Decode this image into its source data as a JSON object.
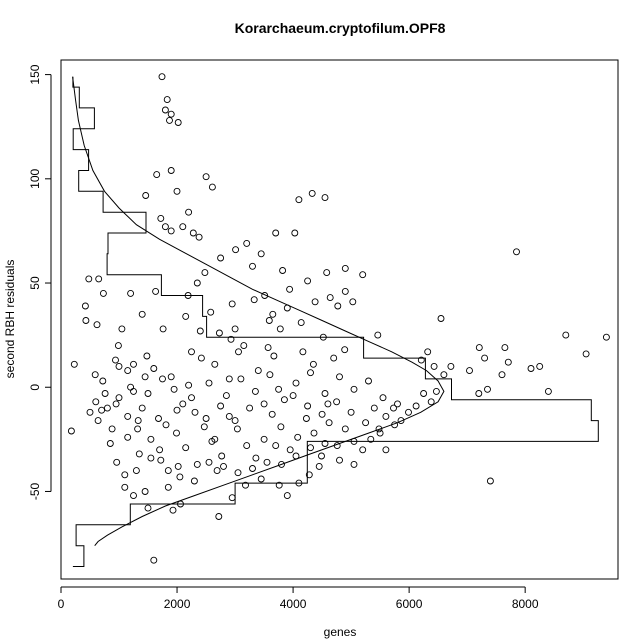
{
  "chart_data": {
    "type": "scatter",
    "title": "Korarchaeum.cryptofilum.OPF8",
    "xlabel": "genes",
    "ylabel": "second RBH residuals",
    "xlim": [
      0,
      9600
    ],
    "ylim": [
      -92,
      157
    ],
    "xticks": [
      0,
      2000,
      4000,
      6000,
      8000
    ],
    "yticks": [
      -50,
      0,
      50,
      100,
      150
    ],
    "xtick_labels": [
      "0",
      "2000",
      "4000",
      "6000",
      "8000"
    ],
    "ytick_labels": [
      "-50",
      "0",
      "50",
      "100",
      "150"
    ],
    "grid": false,
    "points": [
      [
        1740,
        149
      ],
      [
        1830,
        138
      ],
      [
        1800,
        133
      ],
      [
        1900,
        131
      ],
      [
        1870,
        128
      ],
      [
        2020,
        127
      ],
      [
        1900,
        104
      ],
      [
        1650,
        102
      ],
      [
        2500,
        101
      ],
      [
        2610,
        96
      ],
      [
        1460,
        92
      ],
      [
        2000,
        94
      ],
      [
        4330,
        93
      ],
      [
        4550,
        91
      ],
      [
        4100,
        90
      ],
      [
        2200,
        84
      ],
      [
        1720,
        81
      ],
      [
        1800,
        77
      ],
      [
        2100,
        77
      ],
      [
        2280,
        74
      ],
      [
        3700,
        74
      ],
      [
        4030,
        74
      ],
      [
        1900,
        75
      ],
      [
        2380,
        72
      ],
      [
        3450,
        64
      ],
      [
        3010,
        66
      ],
      [
        3200,
        69
      ],
      [
        3300,
        58
      ],
      [
        2750,
        62
      ],
      [
        7850,
        65
      ],
      [
        480,
        52
      ],
      [
        650,
        52
      ],
      [
        730,
        45
      ],
      [
        1200,
        45
      ],
      [
        1630,
        46
      ],
      [
        2190,
        44
      ],
      [
        5200,
        54
      ],
      [
        4580,
        55
      ],
      [
        4250,
        51
      ],
      [
        3940,
        47
      ],
      [
        4900,
        46
      ],
      [
        5030,
        41
      ],
      [
        2950,
        40
      ],
      [
        3330,
        42
      ],
      [
        3510,
        44
      ],
      [
        3590,
        32
      ],
      [
        3900,
        38
      ],
      [
        4380,
        41
      ],
      [
        4640,
        43
      ],
      [
        4770,
        39
      ],
      [
        2580,
        36
      ],
      [
        2150,
        34
      ],
      [
        1400,
        35
      ],
      [
        1760,
        28
      ],
      [
        420,
        39
      ],
      [
        430,
        32
      ],
      [
        620,
        30
      ],
      [
        990,
        20
      ],
      [
        1050,
        28
      ],
      [
        2400,
        27
      ],
      [
        6550,
        33
      ],
      [
        4140,
        31
      ],
      [
        3780,
        28
      ],
      [
        2730,
        26
      ],
      [
        3150,
        20
      ],
      [
        4520,
        24
      ],
      [
        4890,
        18
      ],
      [
        5460,
        25
      ],
      [
        4170,
        17
      ],
      [
        3670,
        15
      ],
      [
        3060,
        17
      ],
      [
        2930,
        23
      ],
      [
        3570,
        19
      ],
      [
        2250,
        17
      ],
      [
        2420,
        14
      ],
      [
        2650,
        11
      ],
      [
        1900,
        5
      ],
      [
        1600,
        9
      ],
      [
        1450,
        5
      ],
      [
        1250,
        11
      ],
      [
        1150,
        8
      ],
      [
        940,
        13
      ],
      [
        720,
        3
      ],
      [
        590,
        6
      ],
      [
        6320,
        17
      ],
      [
        6210,
        13
      ],
      [
        6430,
        10
      ],
      [
        6600,
        6
      ],
      [
        6720,
        10
      ],
      [
        7040,
        8
      ],
      [
        7210,
        19
      ],
      [
        7300,
        14
      ],
      [
        7650,
        19
      ],
      [
        7710,
        12
      ],
      [
        7600,
        6
      ],
      [
        7350,
        -1
      ],
      [
        7200,
        -3
      ],
      [
        8100,
        9
      ],
      [
        8250,
        10
      ],
      [
        8700,
        25
      ],
      [
        9050,
        16
      ],
      [
        9400,
        24
      ],
      [
        8400,
        -2
      ],
      [
        7400,
        -45
      ],
      [
        180,
        -21
      ],
      [
        230,
        11
      ],
      [
        1600,
        -83
      ],
      [
        2720,
        -62
      ],
      [
        1930,
        -59
      ],
      [
        1500,
        -58
      ],
      [
        1250,
        -52
      ],
      [
        2060,
        -56
      ],
      [
        1450,
        -50
      ],
      [
        1850,
        -48
      ],
      [
        2950,
        -53
      ],
      [
        3180,
        -47
      ],
      [
        3760,
        -47
      ],
      [
        3900,
        -52
      ],
      [
        4100,
        -46
      ],
      [
        4280,
        -42
      ],
      [
        3450,
        -44
      ],
      [
        2690,
        -40
      ],
      [
        2350,
        -37
      ],
      [
        2020,
        -38
      ],
      [
        1720,
        -35
      ],
      [
        1300,
        -40
      ],
      [
        1100,
        -42
      ],
      [
        960,
        -36
      ],
      [
        850,
        -27
      ],
      [
        640,
        -16
      ],
      [
        500,
        -12
      ],
      [
        600,
        -7
      ],
      [
        760,
        -3
      ],
      [
        1000,
        -5
      ],
      [
        1150,
        -14
      ],
      [
        1320,
        -20
      ],
      [
        1400,
        -10
      ],
      [
        1550,
        -25
      ],
      [
        1680,
        -15
      ],
      [
        1810,
        -18
      ],
      [
        1990,
        -22
      ],
      [
        2150,
        -29
      ],
      [
        2310,
        -12
      ],
      [
        2470,
        -19
      ],
      [
        2600,
        -26
      ],
      [
        2770,
        -33
      ],
      [
        2900,
        -14
      ],
      [
        3040,
        -20
      ],
      [
        3200,
        -28
      ],
      [
        3360,
        -34
      ],
      [
        3500,
        -25
      ],
      [
        3640,
        -13
      ],
      [
        3790,
        -19
      ],
      [
        3950,
        -30
      ],
      [
        4080,
        -24
      ],
      [
        4230,
        -15
      ],
      [
        4360,
        -22
      ],
      [
        4490,
        -33
      ],
      [
        4620,
        -17
      ],
      [
        4760,
        -28
      ],
      [
        4900,
        -20
      ],
      [
        5050,
        -37
      ],
      [
        5200,
        -30
      ],
      [
        5340,
        -25
      ],
      [
        5480,
        -20
      ],
      [
        5600,
        -14
      ],
      [
        5730,
        -10
      ],
      [
        5860,
        -16
      ],
      [
        5990,
        -12
      ],
      [
        6120,
        -9
      ],
      [
        6250,
        -3
      ],
      [
        6380,
        -7
      ],
      [
        6470,
        -2
      ],
      [
        1100,
        -48
      ],
      [
        800,
        -10
      ],
      [
        1700,
        -30
      ],
      [
        2100,
        -8
      ],
      [
        2550,
        2
      ],
      [
        2850,
        -4
      ],
      [
        3100,
        4
      ],
      [
        3350,
        -2
      ],
      [
        3600,
        6
      ],
      [
        3850,
        -6
      ],
      [
        4050,
        2
      ],
      [
        4300,
        7
      ],
      [
        4550,
        -3
      ],
      [
        4800,
        5
      ],
      [
        5050,
        -1
      ],
      [
        5300,
        3
      ],
      [
        5550,
        -5
      ],
      [
        5800,
        -8
      ],
      [
        1250,
        -2
      ],
      [
        1500,
        -3
      ],
      [
        1750,
        4
      ],
      [
        2000,
        -11
      ],
      [
        2250,
        -5
      ],
      [
        2500,
        -15
      ],
      [
        2750,
        -9
      ],
      [
        3000,
        -16
      ],
      [
        3250,
        -10
      ],
      [
        3500,
        -8
      ],
      [
        3750,
        -1
      ],
      [
        4000,
        -4
      ],
      [
        4250,
        -9
      ],
      [
        4500,
        -13
      ],
      [
        4750,
        -7
      ],
      [
        5000,
        -12
      ],
      [
        5250,
        -17
      ],
      [
        5500,
        -22
      ],
      [
        5750,
        -18
      ],
      [
        950,
        -8
      ],
      [
        1150,
        -24
      ],
      [
        1350,
        -32
      ],
      [
        1550,
        -34
      ],
      [
        1850,
        -40
      ],
      [
        2050,
        -43
      ],
      [
        2300,
        -45
      ],
      [
        2550,
        -36
      ],
      [
        2800,
        -38
      ],
      [
        3050,
        -41
      ],
      [
        3300,
        -39
      ],
      [
        3550,
        -36
      ],
      [
        3800,
        -37
      ],
      [
        4050,
        -33
      ],
      [
        4300,
        -29
      ],
      [
        4550,
        -27
      ],
      [
        4800,
        -35
      ],
      [
        5050,
        -26
      ],
      [
        2350,
        50
      ],
      [
        2480,
        55
      ],
      [
        3820,
        56
      ],
      [
        4900,
        57
      ],
      [
        1480,
        15
      ],
      [
        4700,
        14
      ],
      [
        3400,
        8
      ],
      [
        2200,
        1
      ],
      [
        1950,
        -1
      ],
      [
        3700,
        -28
      ],
      [
        4450,
        -38
      ],
      [
        2650,
        -25
      ],
      [
        1330,
        -16
      ],
      [
        880,
        -20
      ],
      [
        700,
        -11
      ],
      [
        1000,
        10
      ],
      [
        1200,
        0
      ],
      [
        5400,
        -10
      ],
      [
        5600,
        -30
      ],
      [
        3000,
        28
      ],
      [
        3650,
        35
      ],
      [
        2900,
        4
      ],
      [
        4350,
        11
      ],
      [
        4600,
        -8
      ]
    ],
    "curve": [
      [
        200,
        149
      ],
      [
        250,
        138
      ],
      [
        300,
        128
      ],
      [
        400,
        116
      ],
      [
        550,
        104
      ],
      [
        750,
        94
      ],
      [
        1000,
        86
      ],
      [
        1300,
        78
      ],
      [
        1700,
        71
      ],
      [
        2100,
        65
      ],
      [
        2500,
        59
      ],
      [
        2900,
        53
      ],
      [
        3300,
        47
      ],
      [
        3700,
        42
      ],
      [
        4100,
        37
      ],
      [
        4500,
        32
      ],
      [
        4900,
        27
      ],
      [
        5300,
        22
      ],
      [
        5700,
        17
      ],
      [
        6050,
        12
      ],
      [
        6300,
        8
      ],
      [
        6500,
        3
      ],
      [
        6600,
        -2
      ],
      [
        6500,
        -7
      ],
      [
        6200,
        -12
      ],
      [
        5800,
        -17
      ],
      [
        5300,
        -22
      ],
      [
        4800,
        -27
      ],
      [
        4300,
        -32
      ],
      [
        3800,
        -37
      ],
      [
        3300,
        -42
      ],
      [
        2800,
        -47
      ],
      [
        2300,
        -52
      ],
      [
        1800,
        -57
      ],
      [
        1400,
        -62
      ],
      [
        1050,
        -67
      ],
      [
        800,
        -71
      ],
      [
        640,
        -74
      ],
      [
        580,
        -76
      ]
    ],
    "histogram": [
      [
        100,
        105,
        -86
      ],
      [
        -86,
        -80,
        -80
      ],
      [
        -80,
        -75,
        -75
      ],
      [
        -75,
        -70,
        -65
      ],
      [
        -65,
        -60,
        -60
      ],
      [
        -60,
        -55,
        -55
      ],
      [
        -55,
        -50,
        -50
      ],
      [
        -50,
        -45,
        -45
      ],
      [
        -45,
        -40,
        -40
      ],
      [
        -40,
        -35,
        -35
      ]
    ],
    "hist_steps": [
      [
        205,
        -86
      ],
      [
        395,
        -86
      ],
      [
        395,
        -76
      ],
      [
        260,
        -76
      ],
      [
        260,
        -66
      ],
      [
        1195,
        -66
      ],
      [
        1195,
        -56
      ],
      [
        3000,
        -56
      ],
      [
        3000,
        -46
      ],
      [
        4245,
        -46
      ],
      [
        4245,
        -26
      ],
      [
        9260,
        -26
      ],
      [
        9260,
        -16
      ],
      [
        9140,
        -16
      ],
      [
        9140,
        -6
      ],
      [
        6730,
        -6
      ],
      [
        6730,
        4
      ],
      [
        6280,
        4
      ],
      [
        6280,
        14
      ],
      [
        5215,
        14
      ],
      [
        5215,
        24
      ],
      [
        2510,
        24
      ],
      [
        2510,
        34
      ],
      [
        2440,
        34
      ],
      [
        2440,
        44
      ],
      [
        1730,
        44
      ],
      [
        1730,
        54
      ],
      [
        795,
        54
      ],
      [
        795,
        64
      ],
      [
        810,
        64
      ],
      [
        810,
        74
      ],
      [
        1465,
        74
      ],
      [
        1465,
        84
      ],
      [
        725,
        84
      ],
      [
        725,
        94
      ],
      [
        305,
        94
      ],
      [
        305,
        104
      ],
      [
        475,
        104
      ],
      [
        475,
        114
      ],
      [
        210,
        114
      ],
      [
        210,
        124
      ],
      [
        575,
        124
      ],
      [
        575,
        134
      ],
      [
        315,
        134
      ],
      [
        315,
        144
      ],
      [
        205,
        144
      ],
      [
        205,
        149
      ]
    ]
  }
}
